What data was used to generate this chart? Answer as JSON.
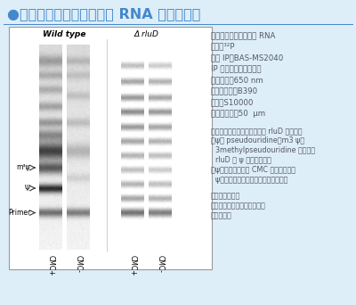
{
  "background_color": "#ddeef8",
  "title_text": "●プライマー伸長法による RNA 修飾の検出",
  "title_color": "#4488cc",
  "gel_label_wt": "Wild type",
  "gel_label_mut": "Δ rluD",
  "lane_labels": [
    "CMC+",
    "CMC-",
    "CMC+",
    "CMC-"
  ],
  "band_label_m3psi": "m³ψ",
  "band_label_psi": "Ψ",
  "band_label_primer": "Primer",
  "info_lines": [
    "サンプル：リボソーム RNA",
    "核種：³²P",
    "使用 IP：BAS-MS2040",
    "IP への露光時間：一晩",
    "助起波長：650 nm",
    "フィルター：B390",
    "感度：S10000",
    "画素サイズ：50  μm"
  ],
  "bullet_lines": [
    "・右は野生型の大腸菌、左は rluD 欠損株。",
    "・ψは pseudouridine、m3 ψは",
    "  3methylpseudouridine の略号。",
    "  rluD は ψ の合成酵素。",
    "・ψの修飾剤である CMC で処理すると",
    "  ψがプライマー伸長法で検出される。"
  ],
  "credit_lines": [
    "データご提供：",
    "東京大学大学院工学系研究科",
    "鈴木勉教授"
  ],
  "text_color": "#555566",
  "arrow_color": "#333333",
  "gel_border_color": "#999999"
}
